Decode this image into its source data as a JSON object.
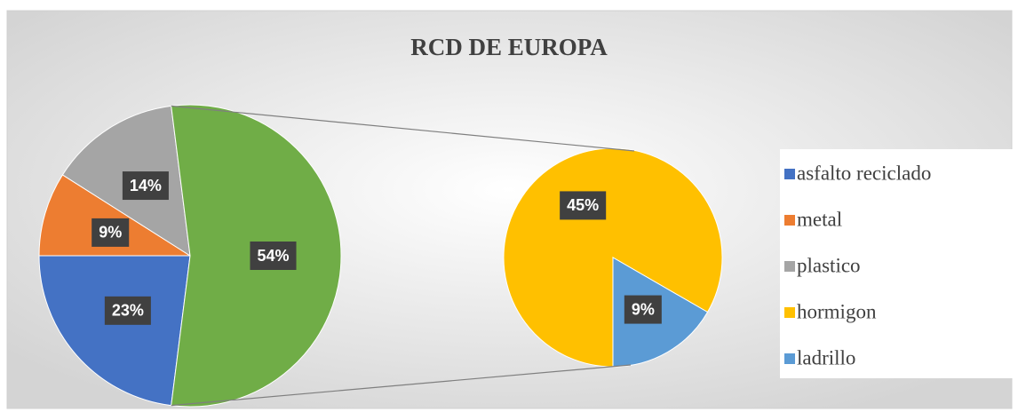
{
  "chart_data": {
    "type": "pie-of-pie",
    "title": "RCD DE EUROPA",
    "categories": [
      "asfalto reciclado",
      "metal",
      "plastico",
      null
    ],
    "values": [
      23,
      9,
      14,
      54
    ],
    "value_labels": [
      "23%",
      "9%",
      "14%",
      "54%"
    ],
    "colors": [
      "#4472c4",
      "#ed7d31",
      "#a5a5a5",
      "#70ad47"
    ],
    "secondary": {
      "categories": [
        "hormigon",
        "ladrillo"
      ],
      "values": [
        45,
        9
      ],
      "value_labels": [
        "45%",
        "9%"
      ],
      "colors": [
        "#ffc000",
        "#5b9bd5"
      ]
    },
    "legend": "right"
  }
}
